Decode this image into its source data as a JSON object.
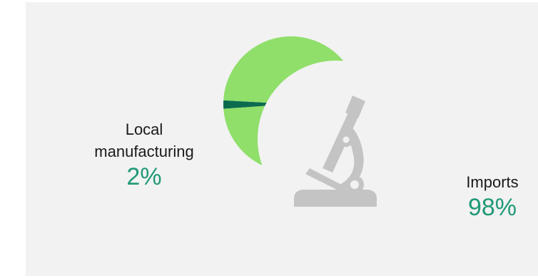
{
  "chart_data": {
    "type": "pie",
    "title": "",
    "slices": [
      {
        "label": "Local manufacturing",
        "value": 2,
        "display": "2%",
        "color": "#0b6b4f"
      },
      {
        "label": "Imports",
        "value": 98,
        "display": "98%",
        "color": "#8fdf6a"
      }
    ],
    "decoration": "microscope-icon"
  },
  "labels": {
    "local": {
      "line1": "Local",
      "line2": "manufacturing",
      "value": "2%"
    },
    "imports": {
      "line1": "Imports",
      "value": "98%"
    }
  },
  "colors": {
    "background": "#f2f2f2",
    "accent_text": "#1f9978",
    "microscope": "#c4c4c4"
  }
}
